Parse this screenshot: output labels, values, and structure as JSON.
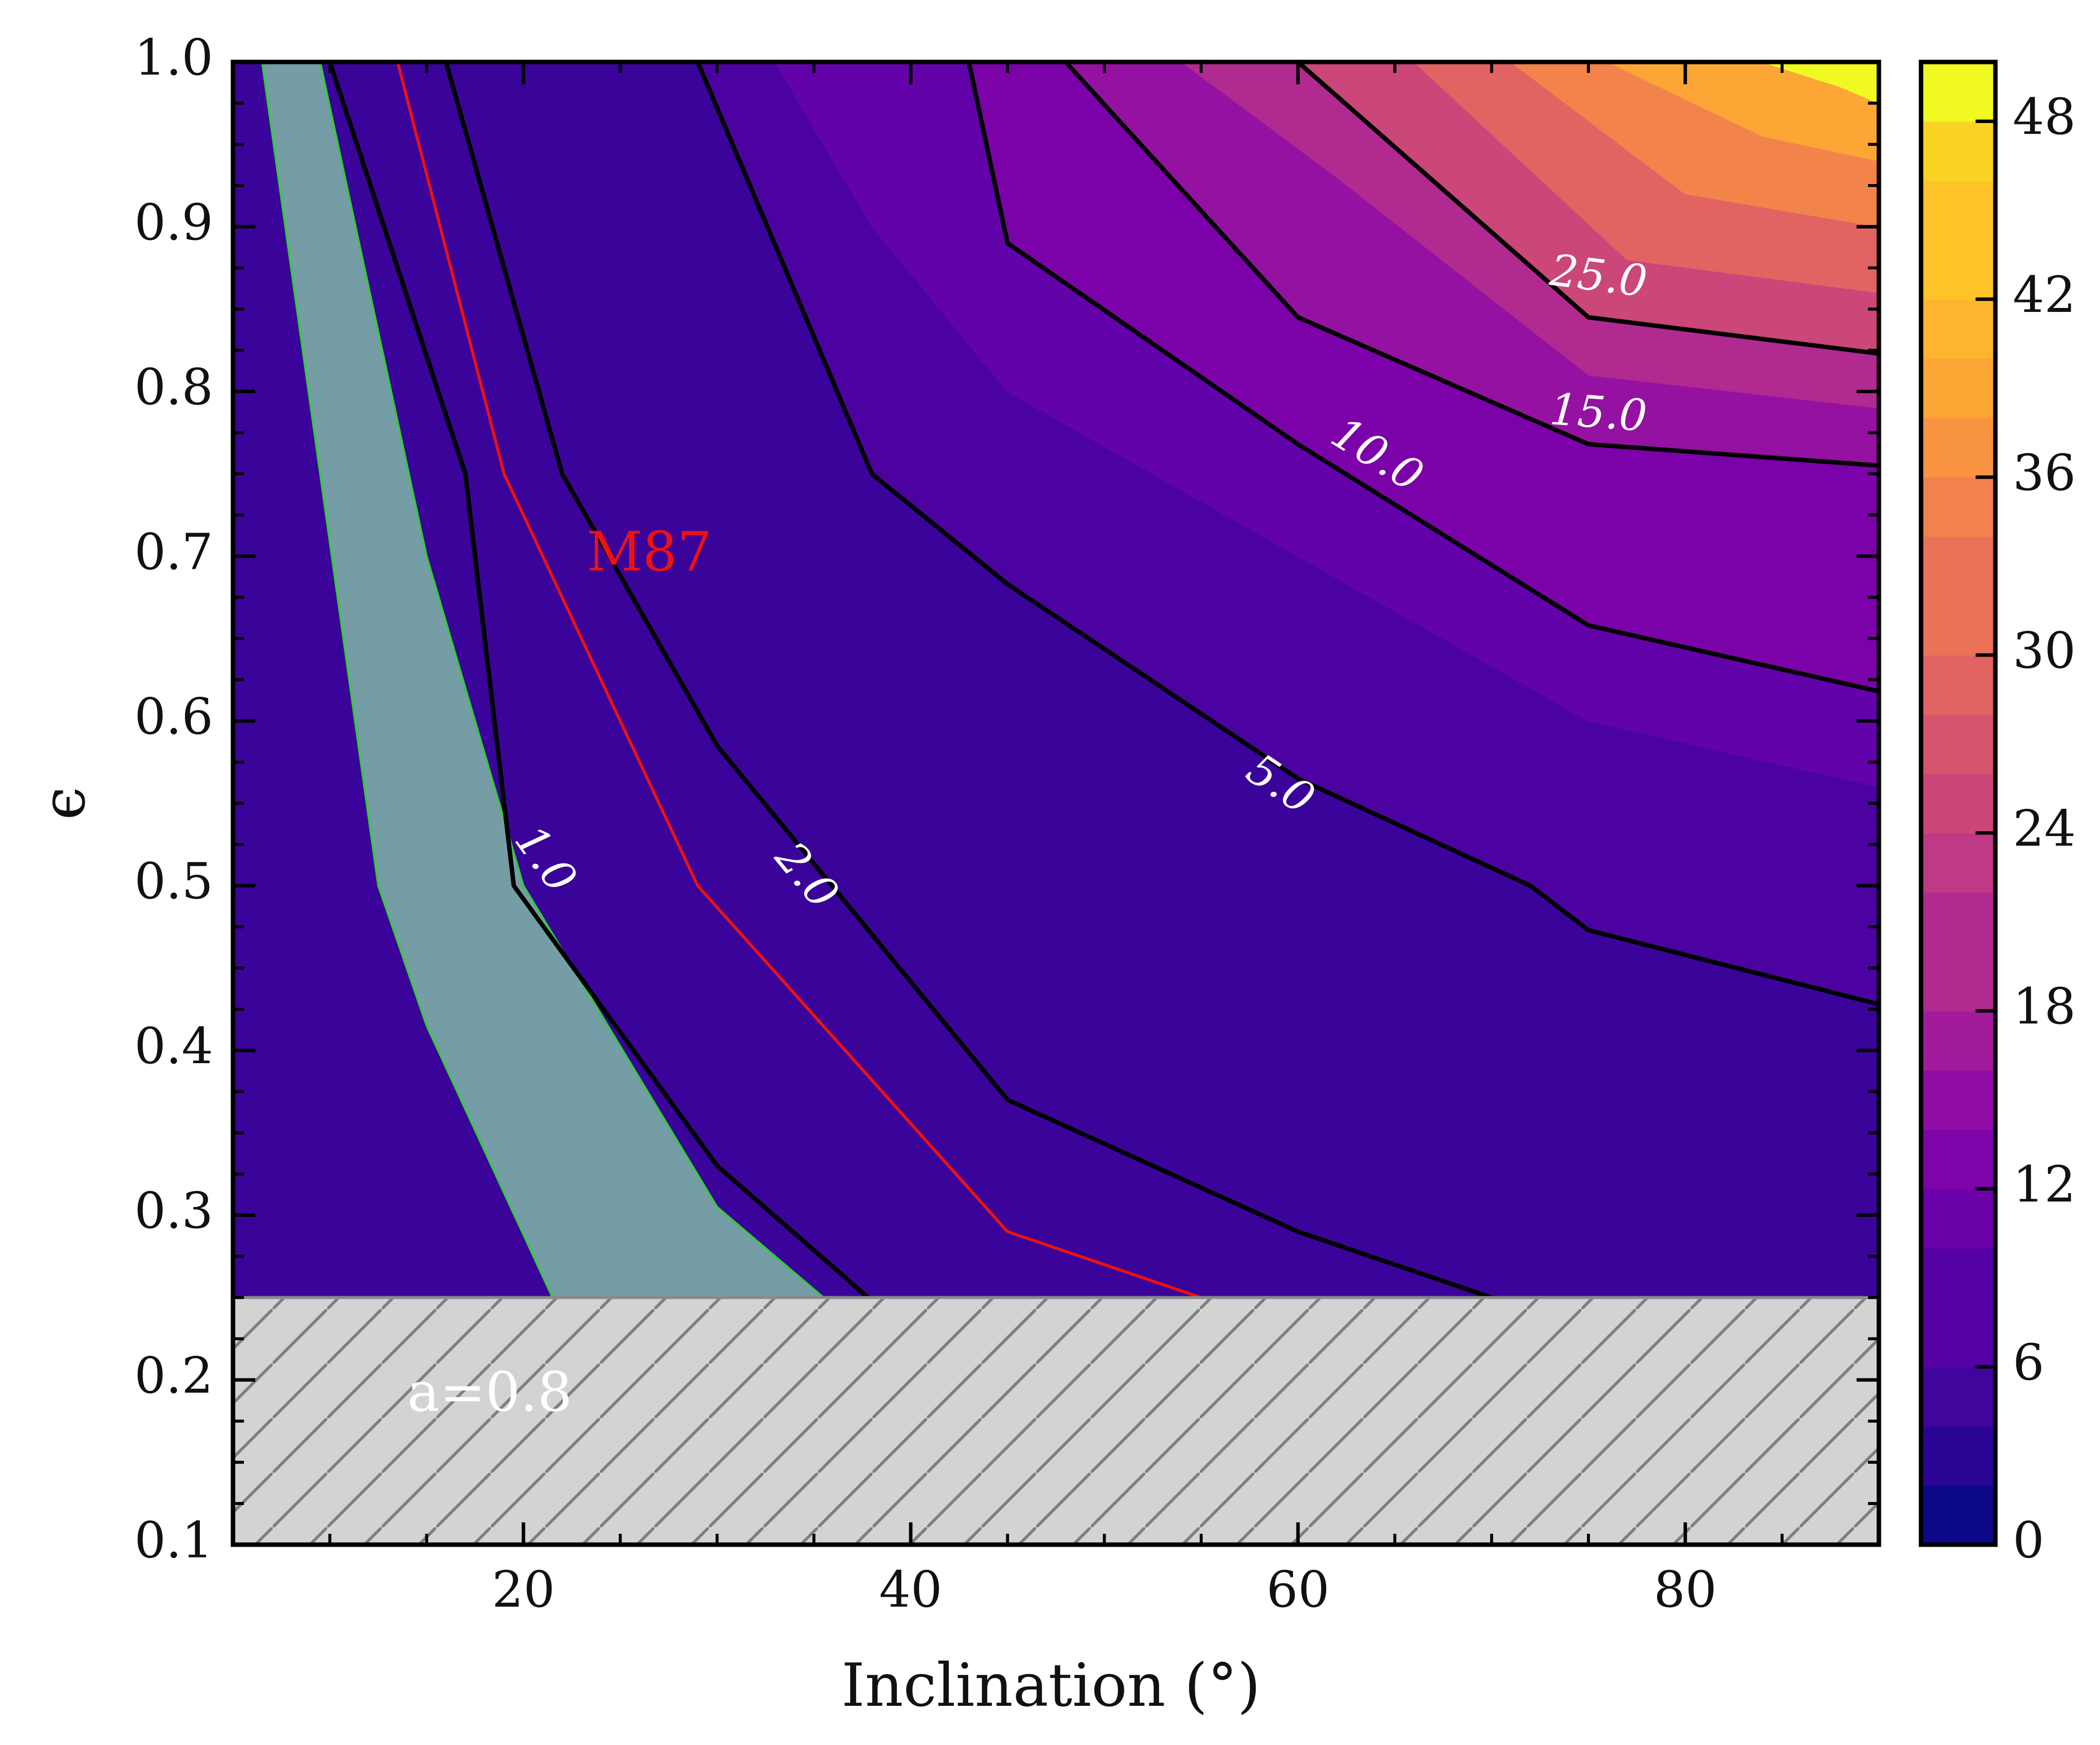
{
  "chart_data": {
    "type": "heatmap",
    "title": "",
    "xlabel": "Inclination (°)",
    "ylabel": "ϵ",
    "xlim": [
      5,
      90
    ],
    "ylim": [
      0.1,
      1.0
    ],
    "x_ticks": [
      20,
      40,
      60,
      80
    ],
    "y_ticks": [
      0.1,
      0.2,
      0.3,
      0.4,
      0.5,
      0.6,
      0.7,
      0.8,
      0.9,
      1.0
    ],
    "x_tick_labels": [
      "20",
      "40",
      "60",
      "80"
    ],
    "y_tick_labels": [
      "0.1",
      "0.2",
      "0.3",
      "0.4",
      "0.5",
      "0.6",
      "0.7",
      "0.8",
      "0.9",
      "1.0"
    ],
    "colorbar": {
      "range": [
        0,
        50
      ],
      "ticks": [
        0,
        6,
        12,
        18,
        24,
        30,
        36,
        42,
        48
      ],
      "tick_labels": [
        "0",
        "6",
        "12",
        "18",
        "24",
        "30",
        "36",
        "42",
        "48"
      ],
      "colormap": "plasma",
      "levels": 25
    },
    "excluded_region": {
      "y_range": [
        0.1,
        0.25
      ],
      "fill": "#d3d3d3",
      "hatch": "diagonal"
    },
    "text_annotations": [
      {
        "text": "a=0.8",
        "x": 14,
        "y": 0.19,
        "color": "#ffffff"
      }
    ],
    "allowed_region": {
      "fill": "#7fb8a8",
      "edge": "#33cc33",
      "left_edge": [
        [
          6.5,
          1.0
        ],
        [
          9.5,
          0.75
        ],
        [
          12.5,
          0.5
        ],
        [
          15,
          0.415
        ],
        [
          21.5,
          0.25
        ]
      ],
      "right_edge": [
        [
          9.5,
          1.0
        ],
        [
          15,
          0.7
        ],
        [
          20,
          0.5
        ],
        [
          30,
          0.305
        ],
        [
          35.5,
          0.25
        ]
      ]
    },
    "contours": [
      {
        "level": 1.0,
        "label": "1.0",
        "label_at": [
          21,
          0.515
        ],
        "points": [
          [
            10,
            1.0
          ],
          [
            17,
            0.75
          ],
          [
            19.5,
            0.5
          ],
          [
            30,
            0.33
          ],
          [
            37.8,
            0.25
          ]
        ]
      },
      {
        "level": 2.0,
        "label": "2.0",
        "label_at": [
          34.5,
          0.505
        ],
        "points": [
          [
            16,
            1.0
          ],
          [
            22,
            0.75
          ],
          [
            30,
            0.585
          ],
          [
            45,
            0.37
          ],
          [
            60,
            0.29
          ],
          [
            70,
            0.25
          ]
        ]
      },
      {
        "level": 5.0,
        "label": "5.0",
        "label_at": [
          59,
          0.56
        ],
        "points": [
          [
            29,
            1.0
          ],
          [
            38,
            0.75
          ],
          [
            45,
            0.683
          ],
          [
            60,
            0.565
          ],
          [
            72,
            0.5
          ],
          [
            75,
            0.473
          ],
          [
            90,
            0.428
          ]
        ]
      },
      {
        "level": 10.0,
        "label": "10.0",
        "label_at": [
          64,
          0.76
        ],
        "points": [
          [
            43,
            1.0
          ],
          [
            45,
            0.89
          ],
          [
            60,
            0.768
          ],
          [
            75,
            0.658
          ],
          [
            90,
            0.618
          ]
        ]
      },
      {
        "level": 15.0,
        "label": "15.0",
        "label_at": [
          75.5,
          0.785
        ],
        "points": [
          [
            48,
            1.0
          ],
          [
            60,
            0.845
          ],
          [
            75,
            0.768
          ],
          [
            90,
            0.755
          ]
        ]
      },
      {
        "level": 25.0,
        "label": "25.0",
        "label_at": [
          75.5,
          0.868
        ],
        "points": [
          [
            60,
            1.0
          ],
          [
            75,
            0.845
          ],
          [
            90,
            0.823
          ]
        ]
      }
    ],
    "reference_curve": {
      "name": "M87",
      "color": "#ee1111",
      "label_at": [
        26.5,
        0.7
      ],
      "points": [
        [
          13.5,
          1.0
        ],
        [
          19,
          0.75
        ],
        [
          25,
          0.6
        ],
        [
          29,
          0.5
        ],
        [
          45,
          0.29
        ],
        [
          55,
          0.25
        ]
      ]
    },
    "fill_bands": [
      {
        "range": [
          0,
          2
        ],
        "color": "#180883",
        "points": [
          [
            5,
            1.0
          ],
          [
            16,
            1.0
          ],
          [
            22,
            0.75
          ],
          [
            30,
            0.585
          ],
          [
            45,
            0.37
          ],
          [
            60,
            0.29
          ],
          [
            70,
            0.25
          ],
          [
            5,
            0.25
          ]
        ]
      },
      {
        "range": [
          2,
          3
        ],
        "color": "#2d0594",
        "points": [
          [
            16,
            1.0
          ],
          [
            29,
            1.0
          ],
          [
            38,
            0.75
          ],
          [
            45,
            0.683
          ],
          [
            60,
            0.565
          ],
          [
            72,
            0.5
          ],
          [
            75,
            0.473
          ],
          [
            90,
            0.428
          ],
          [
            90,
            0.25
          ],
          [
            70,
            0.25
          ],
          [
            60,
            0.29
          ],
          [
            45,
            0.37
          ],
          [
            30,
            0.585
          ],
          [
            22,
            0.75
          ]
        ]
      },
      {
        "range": [
          3,
          4
        ],
        "color": "#3a049a",
        "points": [
          [
            90,
            0.428
          ],
          [
            75,
            0.473
          ],
          [
            72,
            0.5
          ],
          [
            60,
            0.565
          ],
          [
            45,
            0.683
          ],
          [
            38,
            0.75
          ],
          [
            29,
            1.0
          ],
          [
            5,
            1.0
          ],
          [
            5,
            0.25
          ],
          [
            90,
            0.25
          ]
        ],
        "clip": "band-3-4"
      },
      {
        "range": [
          5,
          7
        ],
        "color": "#4c02a1",
        "points": [
          [
            29,
            1.0
          ],
          [
            43,
            1.0
          ],
          [
            45,
            0.89
          ],
          [
            60,
            0.768
          ],
          [
            75,
            0.658
          ],
          [
            90,
            0.618
          ],
          [
            90,
            0.428
          ],
          [
            75,
            0.473
          ],
          [
            72,
            0.5
          ],
          [
            60,
            0.565
          ],
          [
            45,
            0.683
          ],
          [
            38,
            0.75
          ]
        ]
      },
      {
        "range": [
          7,
          10
        ],
        "color": "#6203a9",
        "points": [
          [
            33,
            1.0
          ],
          [
            43,
            1.0
          ],
          [
            45,
            0.89
          ],
          [
            60,
            0.768
          ],
          [
            75,
            0.658
          ],
          [
            90,
            0.618
          ],
          [
            90,
            0.56
          ],
          [
            75,
            0.6
          ],
          [
            60,
            0.7
          ],
          [
            45,
            0.8
          ],
          [
            38,
            0.9
          ]
        ]
      },
      {
        "range": [
          10,
          15
        ],
        "color": "#7a02a8",
        "points": [
          [
            43,
            1.0
          ],
          [
            48,
            1.0
          ],
          [
            60,
            0.845
          ],
          [
            75,
            0.768
          ],
          [
            90,
            0.755
          ],
          [
            90,
            0.618
          ],
          [
            75,
            0.658
          ],
          [
            60,
            0.768
          ],
          [
            45,
            0.89
          ]
        ]
      },
      {
        "range": [
          15,
          20
        ],
        "color": "#9511a1",
        "points": [
          [
            48,
            1.0
          ],
          [
            60,
            1.0
          ],
          [
            75,
            0.845
          ],
          [
            90,
            0.823
          ],
          [
            90,
            0.755
          ],
          [
            75,
            0.768
          ],
          [
            60,
            0.845
          ]
        ]
      },
      {
        "range": [
          20,
          25
        ],
        "color": "#b02a8f",
        "points": [
          [
            54,
            1.0
          ],
          [
            60,
            1.0
          ],
          [
            75,
            0.845
          ],
          [
            90,
            0.823
          ],
          [
            90,
            0.79
          ],
          [
            75,
            0.81
          ],
          [
            62,
            0.93
          ]
        ]
      },
      {
        "range": [
          25,
          30
        ],
        "color": "#cb4679",
        "points": [
          [
            60,
            1.0
          ],
          [
            90,
            1.0
          ],
          [
            90,
            0.823
          ],
          [
            75,
            0.845
          ]
        ]
      },
      {
        "range": [
          30,
          36
        ],
        "color": "#e16462",
        "points": [
          [
            66,
            1.0
          ],
          [
            90,
            1.0
          ],
          [
            90,
            0.86
          ],
          [
            77,
            0.88
          ]
        ]
      },
      {
        "range": [
          36,
          42
        ],
        "color": "#f2844b",
        "points": [
          [
            71,
            1.0
          ],
          [
            90,
            1.0
          ],
          [
            90,
            0.9
          ],
          [
            80,
            0.92
          ]
        ]
      },
      {
        "range": [
          42,
          46
        ],
        "color": "#fca636",
        "points": [
          [
            76,
            1.0
          ],
          [
            90,
            1.0
          ],
          [
            90,
            0.94
          ],
          [
            84,
            0.955
          ]
        ]
      },
      {
        "range": [
          46,
          50
        ],
        "color": "#f0f921",
        "points": [
          [
            84,
            1.0
          ],
          [
            90,
            1.0
          ],
          [
            90,
            0.975
          ],
          [
            88,
            0.985
          ]
        ]
      }
    ]
  }
}
